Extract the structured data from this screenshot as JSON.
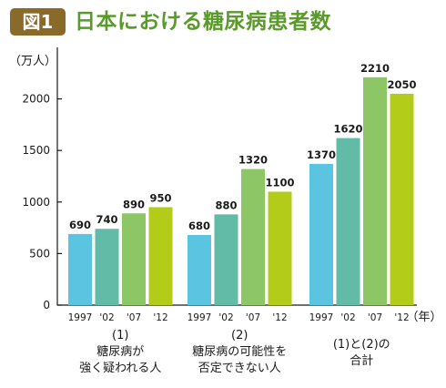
{
  "header": {
    "badge": "図1",
    "title": "日本における糖尿病患者数"
  },
  "colors": {
    "badge_bg": "#8a6a28",
    "title_text": "#5a9a2a",
    "bar_1997": "#5bc4e0",
    "bar_2002": "#62bba6",
    "bar_2007": "#8dc665",
    "bar_2012": "#b3cc1a",
    "axis": "#1a1a1a"
  },
  "chart_data": {
    "type": "bar",
    "title": "日本における糖尿病患者数",
    "ylabel": "（万人）",
    "xlabel": "（年）",
    "ylim": [
      0,
      2500
    ],
    "yticks": [
      0,
      500,
      1000,
      1500,
      2000
    ],
    "categories": [
      "1997",
      "'02",
      "'07",
      "'12"
    ],
    "groups": [
      {
        "label_lines": [
          "(1)",
          "糖尿病が",
          "強く疑われる人"
        ],
        "values": [
          690,
          740,
          890,
          950
        ]
      },
      {
        "label_lines": [
          "(2)",
          "糖尿病の可能性を",
          "否定できない人"
        ],
        "values": [
          680,
          880,
          1320,
          1100
        ]
      },
      {
        "label_lines": [
          "(1)と(2)の",
          "合計"
        ],
        "values": [
          1370,
          1620,
          2210,
          2050
        ]
      }
    ]
  }
}
